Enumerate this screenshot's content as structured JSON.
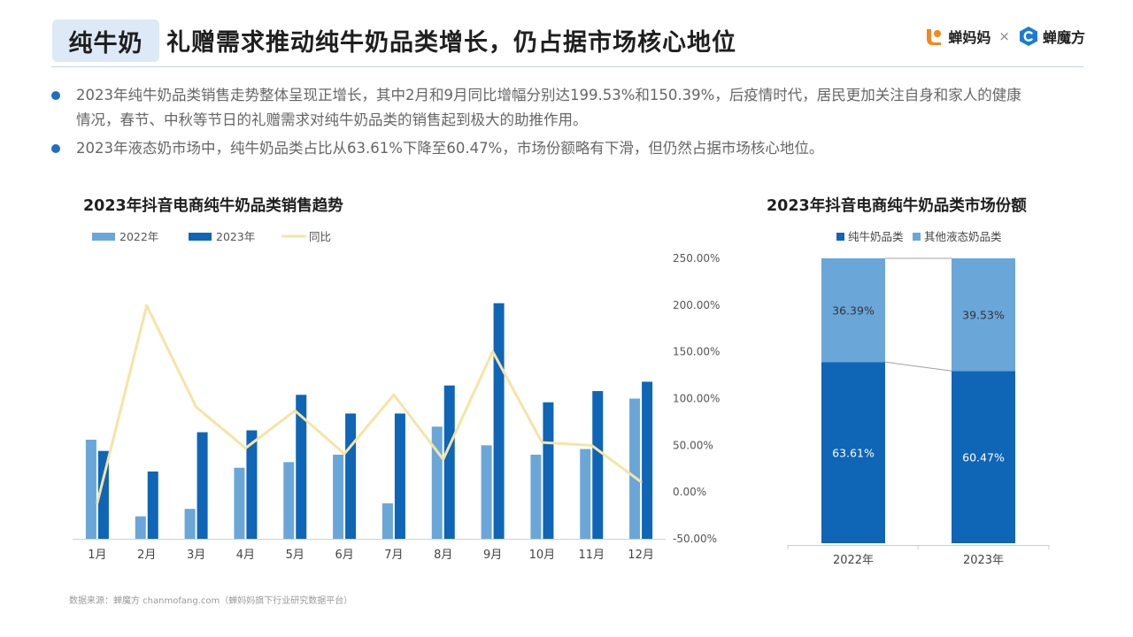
{
  "header": {
    "tag": "纯牛奶",
    "title": "礼赠需求推动纯牛奶品类增长，仍占据市场核心地位",
    "logo_a": "蝉妈妈",
    "logo_sep": "×",
    "logo_b": "蝉魔方"
  },
  "bullets": [
    "2023年纯牛奶品类销售走势整体呈现正增长，其中2月和9月同比增幅分别达199.53%和150.39%，后疫情时代，居民更加关注自身和家人的健康情况，春节、中秋等节日的礼赠需求对纯牛奶品类的销售起到极大的助推作用。",
    "2023年液态奶市场中，纯牛奶品类占比从63.61%下降至60.47%，市场份额略有下滑，但仍然占据市场核心地位。"
  ],
  "source": "数据来源：蝉魔方 chanmofang.com（蝉妈妈旗下行业研究数据平台）",
  "colors": {
    "accent": "#1e6fc4",
    "series_2022": "#6aa7d8",
    "series_2023": "#0f65b6",
    "series_yoy": "#f6e4a6",
    "share_pure": "#0f65b6",
    "share_other": "#6aa7d8"
  },
  "chart_data": [
    {
      "type": "bar",
      "title": "2023年抖音电商纯牛奶品类销售趋势",
      "categories": [
        "1月",
        "2月",
        "3月",
        "4月",
        "5月",
        "6月",
        "7月",
        "8月",
        "9月",
        "10月",
        "11月",
        "12月"
      ],
      "series": [
        {
          "name": "2022年",
          "type": "bar",
          "axis": "left",
          "values": [
            53,
            12,
            16,
            38,
            41,
            45,
            19,
            60,
            50,
            45,
            48,
            75
          ]
        },
        {
          "name": "2023年",
          "type": "bar",
          "axis": "left",
          "values": [
            47,
            36,
            57,
            58,
            77,
            67,
            67,
            82,
            126,
            73,
            79,
            84
          ]
        },
        {
          "name": "同比",
          "type": "line",
          "axis": "right",
          "values": [
            -11.5,
            199.53,
            91,
            47,
            87,
            41,
            104,
            35,
            150.39,
            53,
            50,
            11
          ]
        }
      ],
      "left_ylim": [
        0,
        150
      ],
      "right_axis": {
        "ylim": [
          -50,
          250
        ],
        "ticks": [
          250,
          200,
          150,
          100,
          50,
          0,
          -50
        ],
        "tick_labels": [
          "250.00%",
          "200.00%",
          "150.00%",
          "100.00%",
          "50.00%",
          "0.00%",
          "-50.00%"
        ]
      },
      "legend_position": "top-left",
      "grid": false
    },
    {
      "type": "bar",
      "stacked": true,
      "title": "2023年抖音电商纯牛奶品类市场份额",
      "categories": [
        "2022年",
        "2023年"
      ],
      "series": [
        {
          "name": "纯牛奶品类",
          "values": [
            63.61,
            60.47
          ],
          "labels": [
            "63.61%",
            "60.47%"
          ]
        },
        {
          "name": "其他液态奶品类",
          "values": [
            36.39,
            39.53
          ],
          "labels": [
            "36.39%",
            "39.53%"
          ]
        }
      ],
      "ylim": [
        0,
        100
      ],
      "legend_position": "top",
      "grid": false
    }
  ]
}
